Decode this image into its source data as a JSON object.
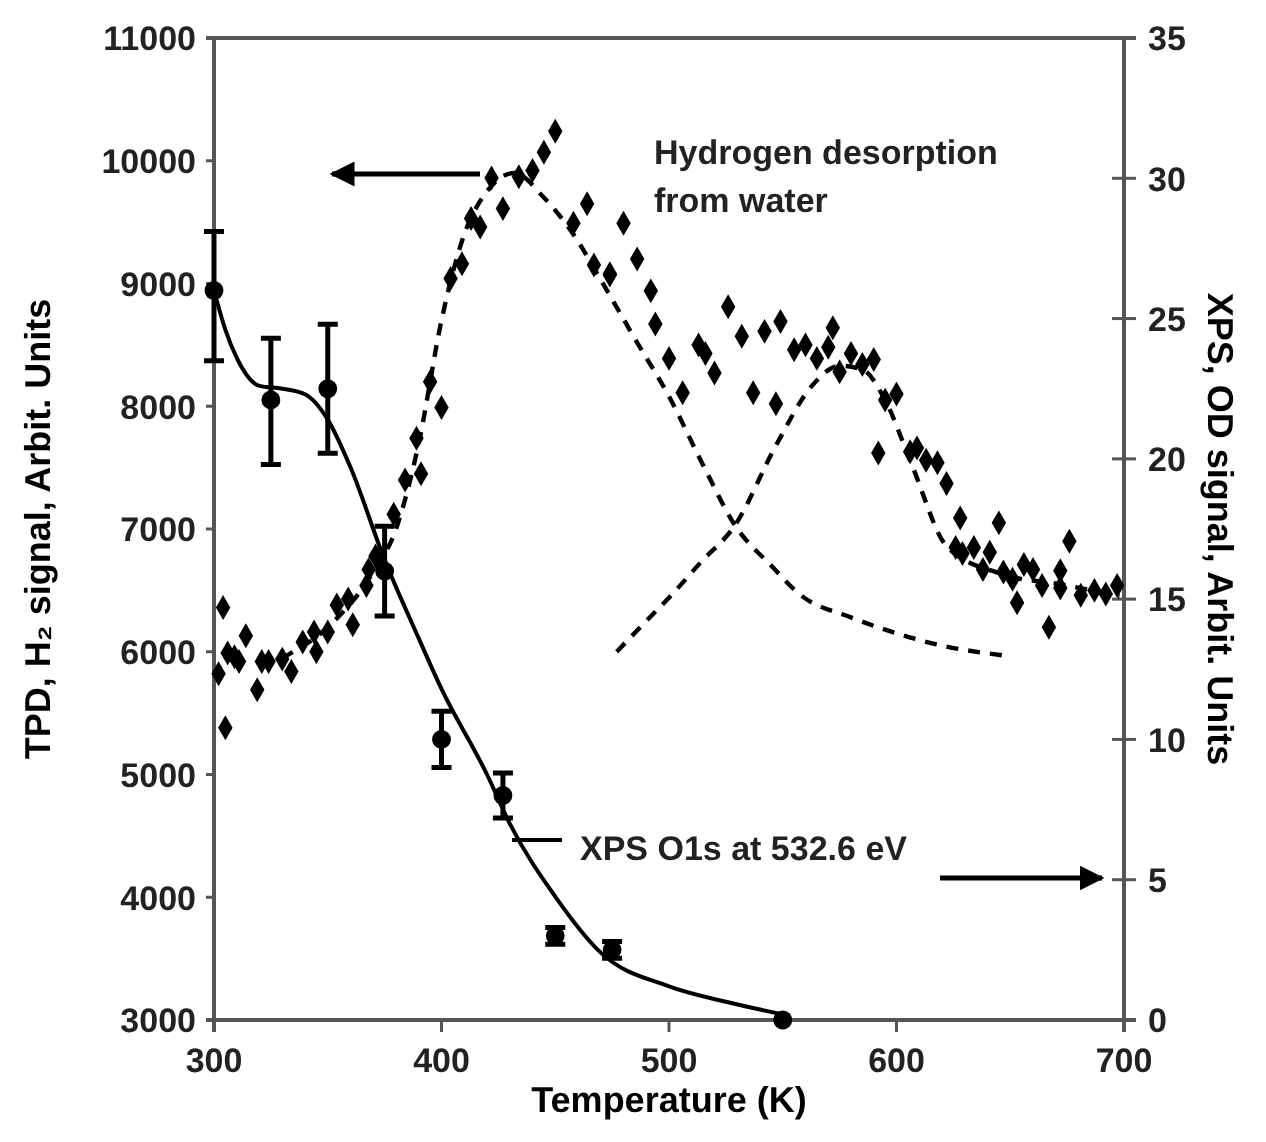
{
  "chart_data": {
    "type": "scatter",
    "xlabel": "Temperature (K)",
    "ylabel": "TPD, H₂ signal, Arbit. Units",
    "y2label": "XPS, OD signal, Arbit. Units",
    "xlim": [
      300,
      700
    ],
    "xticks": [
      300,
      400,
      500,
      600,
      700
    ],
    "ylim": [
      3000,
      11000
    ],
    "yticks": [
      3000,
      4000,
      5000,
      6000,
      7000,
      8000,
      9000,
      10000,
      11000
    ],
    "y2lim": [
      0,
      35
    ],
    "y2ticks": [
      0,
      5,
      10,
      15,
      20,
      25,
      30,
      35
    ],
    "grid": false,
    "annotations": [
      "Hydrogen desorption\nfrom water",
      "XPS O1s at 532.6 eV"
    ],
    "series": [
      {
        "marker": "diamond",
        "color": "#000000",
        "x": [
          302,
          304,
          305,
          306,
          309,
          311,
          314,
          319,
          321,
          324,
          330,
          334,
          339,
          344,
          345,
          350,
          354,
          359,
          361,
          367,
          368,
          371,
          379,
          384,
          389,
          391,
          395,
          400,
          404,
          409,
          413,
          417,
          422,
          427,
          434,
          440,
          445,
          450,
          458,
          464,
          467,
          474,
          474,
          480,
          486,
          492,
          494,
          500,
          506,
          513,
          516,
          520,
          526,
          532,
          537,
          542,
          547,
          549,
          555,
          560,
          565,
          570,
          572,
          575,
          580,
          585,
          590,
          592,
          595,
          600,
          606,
          609,
          613,
          618,
          622,
          626,
          628,
          629,
          634,
          638,
          641,
          645,
          647,
          651,
          653,
          656,
          660,
          664,
          667,
          672,
          672,
          676,
          681,
          687,
          692,
          697
        ],
        "values": [
          5820,
          6360,
          5380,
          5990,
          5960,
          5920,
          6130,
          5690,
          5920,
          5920,
          5940,
          5840,
          6080,
          6160,
          6000,
          6160,
          6380,
          6430,
          6220,
          6540,
          6670,
          6780,
          7120,
          7400,
          7740,
          7450,
          8200,
          7990,
          9040,
          9160,
          9530,
          9460,
          9860,
          9610,
          9870,
          9920,
          10070,
          10240,
          9490,
          9650,
          9150,
          9070,
          9080,
          9490,
          9200,
          8940,
          8670,
          8390,
          8110,
          8500,
          8430,
          8270,
          8810,
          8570,
          8110,
          8610,
          8020,
          8690,
          8460,
          8500,
          8390,
          8480,
          8640,
          8280,
          8430,
          8340,
          8380,
          7620,
          8050,
          8100,
          7630,
          7660,
          7560,
          7540,
          7370,
          6850,
          7090,
          6800,
          6850,
          6670,
          6810,
          7050,
          6650,
          6590,
          6400,
          6710,
          6670,
          6540,
          6200,
          6520,
          6660,
          6900,
          6460,
          6500,
          6470,
          6540
        ]
      },
      {
        "type": "line",
        "line_style": "dashed",
        "marker": "none",
        "color": "#000000",
        "x": [
          330,
          350,
          370,
          380,
          390,
          400,
          410,
          420,
          432,
          445,
          458,
          470,
          485,
          500,
          515,
          529,
          545,
          558,
          580,
          600,
          620,
          647
        ],
        "values": [
          5950,
          6200,
          6650,
          7000,
          7700,
          8700,
          9400,
          9750,
          9900,
          9700,
          9400,
          9030,
          8550,
          8080,
          7520,
          7030,
          6700,
          6460,
          6280,
          6150,
          6050,
          5970
        ]
      },
      {
        "type": "line",
        "line_style": "dashed",
        "marker": "none",
        "color": "#000000",
        "x": [
          477,
          490,
          502,
          514,
          529,
          547,
          563,
          575,
          585,
          595,
          607,
          622,
          645,
          675,
          698
        ],
        "values": [
          6000,
          6250,
          6480,
          6730,
          7030,
          7680,
          8170,
          8330,
          8300,
          8050,
          7510,
          6860,
          6640,
          6540,
          6450
        ]
      },
      {
        "type": "scatter",
        "axis": "y2",
        "marker": "circle",
        "color": "#000000",
        "x": [
          300,
          325,
          350,
          375,
          400,
          427,
          450,
          475,
          550
        ],
        "values": [
          26.0,
          22.1,
          22.5,
          16.0,
          10.0,
          8.0,
          3.0,
          2.5,
          0
        ],
        "errors": [
          [
            23.5,
            28.1
          ],
          [
            19.8,
            24.3
          ],
          [
            20.2,
            24.8
          ],
          [
            14.4,
            17.6
          ],
          [
            9.0,
            11.0
          ],
          [
            7.2,
            8.8
          ],
          [
            2.7,
            3.3
          ],
          [
            2.2,
            2.8
          ],
          null
        ]
      },
      {
        "type": "line",
        "axis": "y2",
        "line_style": "solid",
        "marker": "none",
        "color": "#000000",
        "x": [
          300,
          305,
          310,
          320,
          330,
          340,
          350,
          360,
          375,
          390,
          400,
          420,
          430,
          450,
          470,
          500,
          525,
          550
        ],
        "values": [
          26.0,
          24.6,
          23.6,
          22.6,
          22.5,
          22.3,
          21.4,
          19.7,
          16.4,
          13.6,
          11.8,
          8.75,
          7.0,
          4.4,
          2.4,
          1.2,
          0.65,
          0.2
        ]
      }
    ]
  }
}
